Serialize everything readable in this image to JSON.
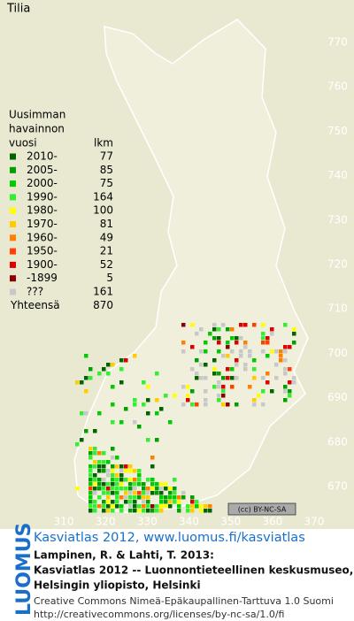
{
  "map": {
    "title": "Tilia",
    "legend": {
      "heading": [
        "Uusimman",
        "havainnon",
        "vuosi"
      ],
      "count_heading": "lkm",
      "rows": [
        {
          "label": "2010-",
          "count": 77,
          "color": "#006400"
        },
        {
          "label": "2005-",
          "count": 85,
          "color": "#00a000"
        },
        {
          "label": "2000-",
          "count": 75,
          "color": "#00cc00"
        },
        {
          "label": "1990-",
          "count": 164,
          "color": "#33ee33"
        },
        {
          "label": "1980-",
          "count": 100,
          "color": "#ffff00"
        },
        {
          "label": "1970-",
          "count": 81,
          "color": "#ffcc00"
        },
        {
          "label": "1960-",
          "count": 49,
          "color": "#ff8000"
        },
        {
          "label": "1950-",
          "count": 21,
          "color": "#ff4000"
        },
        {
          "label": "1900-",
          "count": 52,
          "color": "#dd0000"
        },
        {
          "label": "-1899",
          "count": 5,
          "color": "#8b0000"
        },
        {
          "label": "???",
          "count": 161,
          "color": "#c8c8c8"
        }
      ],
      "total_label": "Yhteensä",
      "total": 870
    },
    "yticks": [
      770,
      760,
      750,
      740,
      730,
      720,
      710,
      700,
      690,
      680,
      670
    ],
    "xticks": [
      310,
      320,
      330,
      340,
      350,
      360,
      370
    ],
    "license_badge": "(cc) BY-NC-SA"
  },
  "footer": {
    "logo": "LUOMUS",
    "link": "Kasviatlas 2012, www.luomus.fi/kasviatlas",
    "citation": [
      "Lampinen, R. & Lahti, T. 2013:",
      "Kasviatlas 2012 -- Luonnontieteellinen keskusmuseo,",
      "Helsingin yliopisto, Helsinki"
    ],
    "license": [
      "Creative Commons Nimeä-Epäkaupallinen-Tarttuva 1.0 Suomi",
      "http://creativecommons.org/licenses/by-nc-sa/1.0/fi"
    ]
  }
}
